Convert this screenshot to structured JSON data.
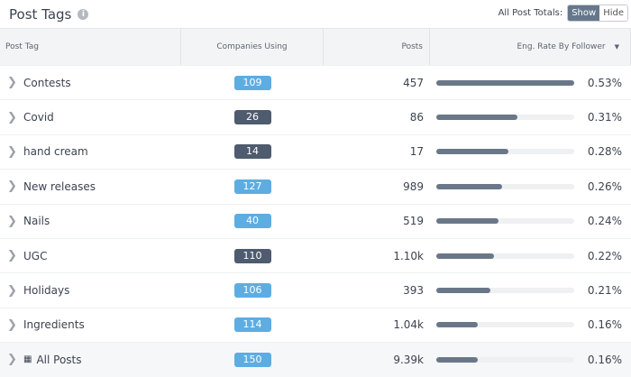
{
  "header": {
    "title": "Post Tags",
    "info_icon": "info-icon",
    "totals_label": "All Post Totals:",
    "show_label": "Show",
    "hide_label": "Hide",
    "show_active": true
  },
  "columns": [
    "Post Tag",
    "Companies Using",
    "Posts",
    "Eng. Rate By Follower"
  ],
  "colors": {
    "badge_light": "#5dade2",
    "badge_dark": "#4f5b6e",
    "bar": "#6a7789"
  },
  "rows": [
    {
      "tag": "Contests",
      "companies": "109",
      "dark": false,
      "posts": "457",
      "bar": 1.0,
      "rate": "0.53%"
    },
    {
      "tag": "Covid",
      "companies": "26",
      "dark": true,
      "posts": "86",
      "bar": 0.59,
      "rate": "0.31%"
    },
    {
      "tag": "hand cream",
      "companies": "14",
      "dark": true,
      "posts": "17",
      "bar": 0.52,
      "rate": "0.28%"
    },
    {
      "tag": "New releases",
      "companies": "127",
      "dark": false,
      "posts": "989",
      "bar": 0.48,
      "rate": "0.26%"
    },
    {
      "tag": "Nails",
      "companies": "40",
      "dark": false,
      "posts": "519",
      "bar": 0.45,
      "rate": "0.24%"
    },
    {
      "tag": "UGC",
      "companies": "110",
      "dark": true,
      "posts": "1.10k",
      "bar": 0.42,
      "rate": "0.22%"
    },
    {
      "tag": "Holidays",
      "companies": "106",
      "dark": false,
      "posts": "393",
      "bar": 0.39,
      "rate": "0.21%"
    },
    {
      "tag": "Ingredients",
      "companies": "114",
      "dark": false,
      "posts": "1.04k",
      "bar": 0.3,
      "rate": "0.16%"
    }
  ],
  "total": {
    "tag": "All Posts",
    "companies": "150",
    "posts": "9.39k",
    "bar": 0.3,
    "rate": "0.16%"
  }
}
